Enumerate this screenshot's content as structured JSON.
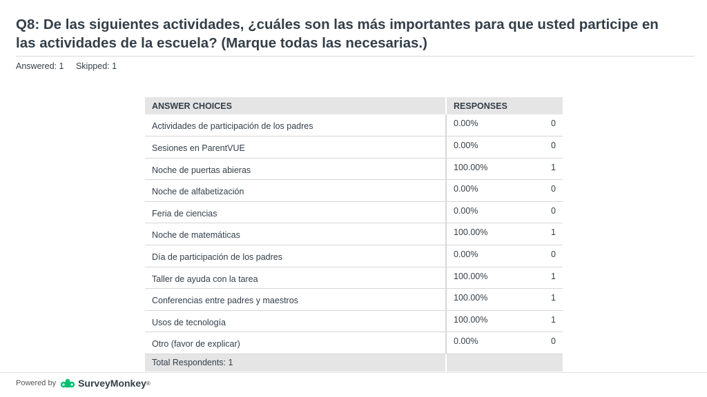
{
  "question": {
    "title": "Q8: De las siguientes actividades, ¿cuáles son las más importantes para que usted participe en las actividades de la escuela? (Marque todas las necesarias.)",
    "answered": "Answered: 1",
    "skipped": "Skipped: 1"
  },
  "table": {
    "header_choices": "ANSWER CHOICES",
    "header_responses": "RESPONSES",
    "rows": [
      {
        "choice": "Actividades de participación de los padres",
        "percent": "0.00%",
        "count": "0"
      },
      {
        "choice": "Sesiones en ParentVUE",
        "percent": "0.00%",
        "count": "0"
      },
      {
        "choice": "Noche de puertas abieras",
        "percent": "100.00%",
        "count": "1"
      },
      {
        "choice": "Noche de alfabetización",
        "percent": "0.00%",
        "count": "0"
      },
      {
        "choice": "Feria de ciencias",
        "percent": "0.00%",
        "count": "0"
      },
      {
        "choice": "Noche de matemáticas",
        "percent": "100.00%",
        "count": "1"
      },
      {
        "choice": "Día de participación de los padres",
        "percent": "0.00%",
        "count": "0"
      },
      {
        "choice": "Taller de ayuda con la tarea",
        "percent": "100.00%",
        "count": "1"
      },
      {
        "choice": "Conferencias entre padres y maestros",
        "percent": "100.00%",
        "count": "1"
      },
      {
        "choice": "Usos de tecnología",
        "percent": "100.00%",
        "count": "1"
      },
      {
        "choice": "Otro (favor de explicar)",
        "percent": "0.00%",
        "count": "0"
      }
    ],
    "total_label": "Total Respondents: 1"
  },
  "footer": {
    "powered_by": "Powered by",
    "brand": "SurveyMonkey",
    "brand_mark": "®",
    "logo_icon": "surveymonkey-logo-icon",
    "brand_color": "#00bf6f"
  }
}
